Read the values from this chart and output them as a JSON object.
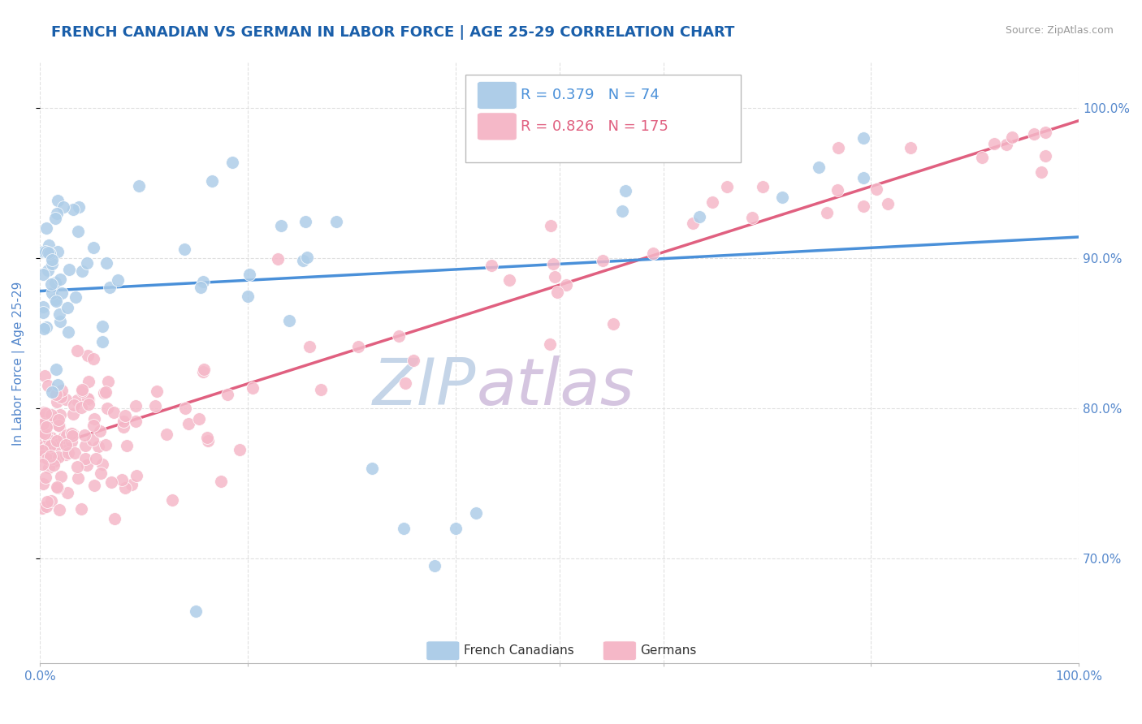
{
  "title": "FRENCH CANADIAN VS GERMAN IN LABOR FORCE | AGE 25-29 CORRELATION CHART",
  "source_text": "Source: ZipAtlas.com",
  "ylabel": "In Labor Force | Age 25-29",
  "xlim": [
    0.0,
    1.0
  ],
  "ylim": [
    0.63,
    1.03
  ],
  "ytick_vals": [
    0.7,
    0.8,
    0.9,
    1.0
  ],
  "ytick_labels": [
    "70.0%",
    "80.0%",
    "90.0%",
    "100.0%"
  ],
  "blue_R": 0.379,
  "blue_N": 74,
  "pink_R": 0.826,
  "pink_N": 175,
  "legend_label_blue": "French Canadians",
  "legend_label_pink": "Germans",
  "blue_color": "#AECDE8",
  "pink_color": "#F5B8C8",
  "blue_line_color": "#4A90D9",
  "pink_line_color": "#E06080",
  "title_color": "#1A5FAA",
  "axis_label_color": "#5588CC",
  "watermark_zip_color": "#C5D5E8",
  "watermark_atlas_color": "#D5C5E0",
  "background_color": "#FFFFFF",
  "grid_color": "#DDDDDD",
  "source_color": "#999999"
}
